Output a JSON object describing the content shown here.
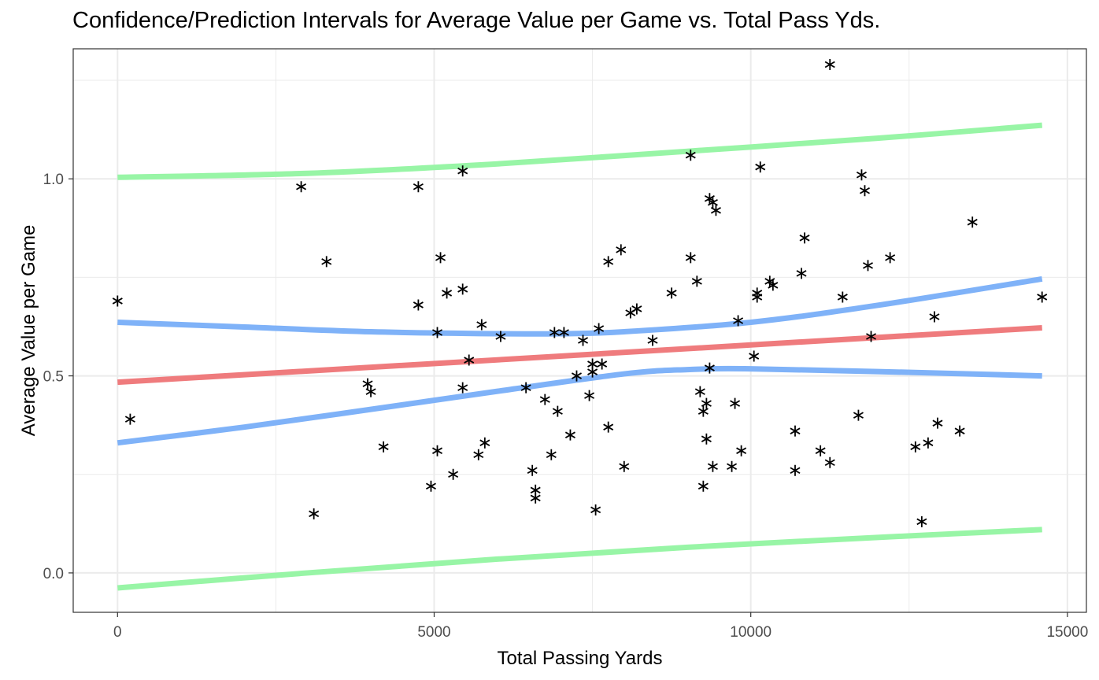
{
  "chart_data": {
    "type": "scatter",
    "title": "Confidence/Prediction Intervals for Average Value per Game vs. Total Pass Yds.",
    "xlabel": "Total Passing Yards",
    "ylabel": "Average Value per Game",
    "xlim": [
      -700,
      15300
    ],
    "ylim": [
      -0.1,
      1.33
    ],
    "x_ticks": [
      0,
      5000,
      10000,
      15000
    ],
    "x_tick_labels": [
      "0",
      "5000",
      "10000",
      "15000"
    ],
    "y_ticks": [
      0.0,
      0.5,
      1.0
    ],
    "y_tick_labels": [
      "0.0",
      "0.5",
      "1.0"
    ],
    "grid": true,
    "legend": "none",
    "colors": {
      "points": "#000000",
      "fit": "#EF7B7D",
      "confidence": "#7FB2F8",
      "prediction": "#98F5A6",
      "grid": "#ebebeb",
      "border": "#333333"
    },
    "points": [
      {
        "x": 0,
        "y": 0.69
      },
      {
        "x": 200,
        "y": 0.39
      },
      {
        "x": 2900,
        "y": 0.98
      },
      {
        "x": 3100,
        "y": 0.15
      },
      {
        "x": 3300,
        "y": 0.79
      },
      {
        "x": 3950,
        "y": 0.48
      },
      {
        "x": 4000,
        "y": 0.46
      },
      {
        "x": 4200,
        "y": 0.32
      },
      {
        "x": 4750,
        "y": 0.98
      },
      {
        "x": 4750,
        "y": 0.68
      },
      {
        "x": 4950,
        "y": 0.22
      },
      {
        "x": 5050,
        "y": 0.61
      },
      {
        "x": 5050,
        "y": 0.31
      },
      {
        "x": 5100,
        "y": 0.8
      },
      {
        "x": 5200,
        "y": 0.71
      },
      {
        "x": 5300,
        "y": 0.25
      },
      {
        "x": 5450,
        "y": 0.47
      },
      {
        "x": 5450,
        "y": 1.02
      },
      {
        "x": 5450,
        "y": 0.72
      },
      {
        "x": 5550,
        "y": 0.54
      },
      {
        "x": 5700,
        "y": 0.3
      },
      {
        "x": 5750,
        "y": 0.63
      },
      {
        "x": 5800,
        "y": 0.33
      },
      {
        "x": 6050,
        "y": 0.6
      },
      {
        "x": 6450,
        "y": 0.47
      },
      {
        "x": 6550,
        "y": 0.26
      },
      {
        "x": 6600,
        "y": 0.21
      },
      {
        "x": 6600,
        "y": 0.19
      },
      {
        "x": 6750,
        "y": 0.44
      },
      {
        "x": 6850,
        "y": 0.3
      },
      {
        "x": 6900,
        "y": 0.61
      },
      {
        "x": 6950,
        "y": 0.41
      },
      {
        "x": 7050,
        "y": 0.61
      },
      {
        "x": 7150,
        "y": 0.35
      },
      {
        "x": 7250,
        "y": 0.5
      },
      {
        "x": 7350,
        "y": 0.59
      },
      {
        "x": 7450,
        "y": 0.45
      },
      {
        "x": 7500,
        "y": 0.51
      },
      {
        "x": 7500,
        "y": 0.53
      },
      {
        "x": 7550,
        "y": 0.16
      },
      {
        "x": 7600,
        "y": 0.62
      },
      {
        "x": 7650,
        "y": 0.53
      },
      {
        "x": 7750,
        "y": 0.79
      },
      {
        "x": 7750,
        "y": 0.37
      },
      {
        "x": 7950,
        "y": 0.82
      },
      {
        "x": 8000,
        "y": 0.27
      },
      {
        "x": 8100,
        "y": 0.66
      },
      {
        "x": 8200,
        "y": 0.67
      },
      {
        "x": 8450,
        "y": 0.59
      },
      {
        "x": 8750,
        "y": 0.71
      },
      {
        "x": 9050,
        "y": 1.06
      },
      {
        "x": 9050,
        "y": 0.8
      },
      {
        "x": 9150,
        "y": 0.74
      },
      {
        "x": 9200,
        "y": 0.46
      },
      {
        "x": 9250,
        "y": 0.41
      },
      {
        "x": 9250,
        "y": 0.22
      },
      {
        "x": 9300,
        "y": 0.43
      },
      {
        "x": 9300,
        "y": 0.34
      },
      {
        "x": 9350,
        "y": 0.95
      },
      {
        "x": 9350,
        "y": 0.52
      },
      {
        "x": 9400,
        "y": 0.94
      },
      {
        "x": 9400,
        "y": 0.27
      },
      {
        "x": 9450,
        "y": 0.92
      },
      {
        "x": 9700,
        "y": 0.27
      },
      {
        "x": 9750,
        "y": 0.43
      },
      {
        "x": 9800,
        "y": 0.64
      },
      {
        "x": 9850,
        "y": 0.31
      },
      {
        "x": 10050,
        "y": 0.55
      },
      {
        "x": 10100,
        "y": 0.71
      },
      {
        "x": 10100,
        "y": 0.7
      },
      {
        "x": 10150,
        "y": 1.03
      },
      {
        "x": 10300,
        "y": 0.74
      },
      {
        "x": 10350,
        "y": 0.73
      },
      {
        "x": 10700,
        "y": 0.36
      },
      {
        "x": 10700,
        "y": 0.26
      },
      {
        "x": 10800,
        "y": 0.76
      },
      {
        "x": 10850,
        "y": 0.85
      },
      {
        "x": 11100,
        "y": 0.31
      },
      {
        "x": 11250,
        "y": 1.29
      },
      {
        "x": 11250,
        "y": 0.28
      },
      {
        "x": 11450,
        "y": 0.7
      },
      {
        "x": 11700,
        "y": 0.4
      },
      {
        "x": 11750,
        "y": 1.01
      },
      {
        "x": 11800,
        "y": 0.97
      },
      {
        "x": 11850,
        "y": 0.78
      },
      {
        "x": 11900,
        "y": 0.6
      },
      {
        "x": 12200,
        "y": 0.8
      },
      {
        "x": 12600,
        "y": 0.32
      },
      {
        "x": 12700,
        "y": 0.13
      },
      {
        "x": 12800,
        "y": 0.33
      },
      {
        "x": 12900,
        "y": 0.65
      },
      {
        "x": 12950,
        "y": 0.38
      },
      {
        "x": 13300,
        "y": 0.36
      },
      {
        "x": 13500,
        "y": 0.89
      },
      {
        "x": 14600,
        "y": 0.7
      }
    ],
    "series": [
      {
        "role": "fit",
        "x": [
          0,
          14600
        ],
        "y": [
          0.484,
          0.622
        ]
      },
      {
        "role": "confidence-upper",
        "x": [
          0,
          2000,
          4000,
          6000,
          7000,
          8000,
          10000,
          12000,
          14600
        ],
        "y": [
          0.636,
          0.624,
          0.612,
          0.607,
          0.607,
          0.612,
          0.636,
          0.679,
          0.746
        ]
      },
      {
        "role": "confidence-lower",
        "x": [
          0,
          2000,
          4000,
          6000,
          8000,
          9000,
          10000,
          12000,
          14600
        ],
        "y": [
          0.33,
          0.37,
          0.415,
          0.461,
          0.505,
          0.516,
          0.518,
          0.511,
          0.5
        ]
      },
      {
        "role": "prediction-upper",
        "x": [
          0,
          3000,
          6000,
          9000,
          12000,
          14600
        ],
        "y": [
          1.004,
          1.014,
          1.038,
          1.07,
          1.103,
          1.136
        ]
      },
      {
        "role": "prediction-lower",
        "x": [
          0,
          3000,
          6000,
          9000,
          12000,
          14600
        ],
        "y": [
          -0.038,
          0.0,
          0.035,
          0.065,
          0.09,
          0.11
        ]
      }
    ]
  }
}
